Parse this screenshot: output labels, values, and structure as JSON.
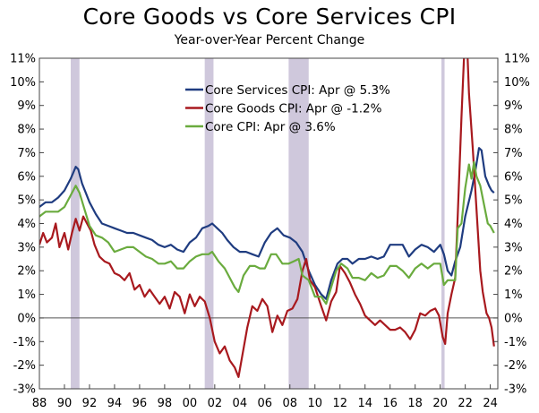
{
  "chart_data": {
    "type": "line",
    "title": "Core Goods vs Core Services CPI",
    "subtitle": "Year-over-Year Percent Change",
    "xlim": [
      1988,
      2024.6
    ],
    "ylim": [
      -3,
      11
    ],
    "y_ticks": [
      -3,
      -2,
      -1,
      0,
      1,
      2,
      3,
      4,
      5,
      6,
      7,
      8,
      9,
      10,
      11
    ],
    "y_tick_labels": [
      "-3%",
      "-2%",
      "-1%",
      "0%",
      "1%",
      "2%",
      "3%",
      "4%",
      "5%",
      "6%",
      "7%",
      "8%",
      "9%",
      "10%",
      "11%"
    ],
    "x_ticks": [
      1988,
      1990,
      1992,
      1994,
      1996,
      1998,
      2000,
      2002,
      2004,
      2006,
      2008,
      2010,
      2012,
      2014,
      2016,
      2018,
      2020,
      2022,
      2024
    ],
    "x_tick_labels": [
      "88",
      "90",
      "92",
      "94",
      "96",
      "98",
      "00",
      "02",
      "04",
      "06",
      "08",
      "10",
      "12",
      "14",
      "16",
      "18",
      "20",
      "22",
      "24"
    ],
    "axis_labels_both_sides": true,
    "zero_line": true,
    "grid": false,
    "legend_position": "top-center",
    "recession_shading": [
      [
        1990.5,
        1991.2
      ],
      [
        2001.2,
        2001.9
      ],
      [
        2007.9,
        2009.5
      ],
      [
        2020.1,
        2020.35
      ]
    ],
    "recession_color": "#cfc8dc",
    "series": [
      {
        "name": "Core Services CPI: Apr @ 5.3%",
        "color": "#1f3c80",
        "points": [
          [
            1988.0,
            4.7
          ],
          [
            1988.5,
            4.9
          ],
          [
            1989.0,
            4.9
          ],
          [
            1989.5,
            5.1
          ],
          [
            1990.0,
            5.4
          ],
          [
            1990.5,
            5.9
          ],
          [
            1990.9,
            6.4
          ],
          [
            1991.1,
            6.3
          ],
          [
            1991.4,
            5.7
          ],
          [
            1991.7,
            5.3
          ],
          [
            1992.0,
            4.9
          ],
          [
            1992.5,
            4.4
          ],
          [
            1993.0,
            4.0
          ],
          [
            1993.5,
            3.9
          ],
          [
            1994.0,
            3.8
          ],
          [
            1994.5,
            3.7
          ],
          [
            1995.0,
            3.6
          ],
          [
            1995.5,
            3.6
          ],
          [
            1996.0,
            3.5
          ],
          [
            1996.5,
            3.4
          ],
          [
            1997.0,
            3.3
          ],
          [
            1997.5,
            3.1
          ],
          [
            1998.0,
            3.0
          ],
          [
            1998.5,
            3.1
          ],
          [
            1999.0,
            2.9
          ],
          [
            1999.5,
            2.8
          ],
          [
            2000.0,
            3.2
          ],
          [
            2000.5,
            3.4
          ],
          [
            2001.0,
            3.8
          ],
          [
            2001.5,
            3.9
          ],
          [
            2001.8,
            4.0
          ],
          [
            2002.2,
            3.8
          ],
          [
            2002.6,
            3.6
          ],
          [
            2003.0,
            3.3
          ],
          [
            2003.5,
            3.0
          ],
          [
            2004.0,
            2.8
          ],
          [
            2004.5,
            2.8
          ],
          [
            2005.0,
            2.7
          ],
          [
            2005.5,
            2.6
          ],
          [
            2006.0,
            3.2
          ],
          [
            2006.5,
            3.6
          ],
          [
            2007.0,
            3.8
          ],
          [
            2007.5,
            3.5
          ],
          [
            2008.0,
            3.4
          ],
          [
            2008.5,
            3.2
          ],
          [
            2009.0,
            2.8
          ],
          [
            2009.5,
            2.0
          ],
          [
            2010.0,
            1.4
          ],
          [
            2010.5,
            1.0
          ],
          [
            2010.9,
            0.8
          ],
          [
            2011.3,
            1.6
          ],
          [
            2011.8,
            2.3
          ],
          [
            2012.2,
            2.5
          ],
          [
            2012.6,
            2.5
          ],
          [
            2013.0,
            2.3
          ],
          [
            2013.5,
            2.5
          ],
          [
            2014.0,
            2.5
          ],
          [
            2014.5,
            2.6
          ],
          [
            2015.0,
            2.5
          ],
          [
            2015.5,
            2.6
          ],
          [
            2016.0,
            3.1
          ],
          [
            2016.5,
            3.1
          ],
          [
            2017.0,
            3.1
          ],
          [
            2017.5,
            2.6
          ],
          [
            2018.0,
            2.9
          ],
          [
            2018.5,
            3.1
          ],
          [
            2019.0,
            3.0
          ],
          [
            2019.5,
            2.8
          ],
          [
            2020.0,
            3.1
          ],
          [
            2020.3,
            2.7
          ],
          [
            2020.6,
            2.0
          ],
          [
            2020.9,
            1.8
          ],
          [
            2021.2,
            2.4
          ],
          [
            2021.6,
            3.0
          ],
          [
            2022.0,
            4.3
          ],
          [
            2022.5,
            5.4
          ],
          [
            2022.8,
            6.2
          ],
          [
            2023.1,
            7.2
          ],
          [
            2023.3,
            7.1
          ],
          [
            2023.6,
            6.0
          ],
          [
            2023.9,
            5.6
          ],
          [
            2024.1,
            5.4
          ],
          [
            2024.3,
            5.3
          ]
        ]
      },
      {
        "name": "Core Goods CPI: Apr @ -1.2%",
        "color": "#a8191e",
        "points": [
          [
            1988.0,
            3.1
          ],
          [
            1988.3,
            3.6
          ],
          [
            1988.6,
            3.2
          ],
          [
            1989.0,
            3.4
          ],
          [
            1989.3,
            4.0
          ],
          [
            1989.6,
            3.0
          ],
          [
            1990.0,
            3.6
          ],
          [
            1990.3,
            2.9
          ],
          [
            1990.6,
            3.6
          ],
          [
            1990.9,
            4.2
          ],
          [
            1991.2,
            3.7
          ],
          [
            1991.5,
            4.3
          ],
          [
            1991.8,
            4.0
          ],
          [
            1992.1,
            3.7
          ],
          [
            1992.4,
            3.1
          ],
          [
            1992.8,
            2.6
          ],
          [
            1993.2,
            2.4
          ],
          [
            1993.6,
            2.3
          ],
          [
            1994.0,
            1.9
          ],
          [
            1994.4,
            1.8
          ],
          [
            1994.8,
            1.6
          ],
          [
            1995.2,
            1.9
          ],
          [
            1995.6,
            1.2
          ],
          [
            1996.0,
            1.4
          ],
          [
            1996.4,
            0.9
          ],
          [
            1996.8,
            1.2
          ],
          [
            1997.2,
            0.9
          ],
          [
            1997.6,
            0.6
          ],
          [
            1998.0,
            0.9
          ],
          [
            1998.4,
            0.4
          ],
          [
            1998.8,
            1.1
          ],
          [
            1999.2,
            0.9
          ],
          [
            1999.6,
            0.2
          ],
          [
            2000.0,
            1.0
          ],
          [
            2000.4,
            0.5
          ],
          [
            2000.8,
            0.9
          ],
          [
            2001.2,
            0.7
          ],
          [
            2001.6,
            0.0
          ],
          [
            2002.0,
            -1.0
          ],
          [
            2002.4,
            -1.5
          ],
          [
            2002.8,
            -1.2
          ],
          [
            2003.2,
            -1.8
          ],
          [
            2003.6,
            -2.1
          ],
          [
            2003.9,
            -2.5
          ],
          [
            2004.2,
            -1.6
          ],
          [
            2004.6,
            -0.4
          ],
          [
            2005.0,
            0.5
          ],
          [
            2005.4,
            0.3
          ],
          [
            2005.8,
            0.8
          ],
          [
            2006.2,
            0.5
          ],
          [
            2006.6,
            -0.6
          ],
          [
            2007.0,
            0.1
          ],
          [
            2007.4,
            -0.3
          ],
          [
            2007.8,
            0.3
          ],
          [
            2008.2,
            0.4
          ],
          [
            2008.6,
            0.8
          ],
          [
            2009.0,
            2.0
          ],
          [
            2009.3,
            2.5
          ],
          [
            2009.6,
            1.6
          ],
          [
            2010.0,
            1.3
          ],
          [
            2010.5,
            0.5
          ],
          [
            2010.9,
            -0.1
          ],
          [
            2011.3,
            0.7
          ],
          [
            2011.7,
            1.1
          ],
          [
            2012.0,
            2.2
          ],
          [
            2012.4,
            1.9
          ],
          [
            2012.8,
            1.5
          ],
          [
            2013.2,
            1.0
          ],
          [
            2013.6,
            0.6
          ],
          [
            2014.0,
            0.1
          ],
          [
            2014.4,
            -0.1
          ],
          [
            2014.8,
            -0.3
          ],
          [
            2015.2,
            -0.1
          ],
          [
            2015.6,
            -0.3
          ],
          [
            2016.0,
            -0.5
          ],
          [
            2016.4,
            -0.5
          ],
          [
            2016.8,
            -0.4
          ],
          [
            2017.2,
            -0.6
          ],
          [
            2017.6,
            -0.9
          ],
          [
            2018.0,
            -0.5
          ],
          [
            2018.4,
            0.2
          ],
          [
            2018.8,
            0.1
          ],
          [
            2019.2,
            0.3
          ],
          [
            2019.6,
            0.4
          ],
          [
            2019.9,
            0.1
          ],
          [
            2020.2,
            -0.8
          ],
          [
            2020.4,
            -1.1
          ],
          [
            2020.6,
            0.2
          ],
          [
            2020.9,
            1.0
          ],
          [
            2021.2,
            1.7
          ],
          [
            2021.4,
            4.3
          ],
          [
            2021.7,
            8.5
          ],
          [
            2021.9,
            11.0
          ],
          [
            2022.1,
            12.3
          ],
          [
            2022.3,
            9.5
          ],
          [
            2022.6,
            7.2
          ],
          [
            2022.9,
            4.6
          ],
          [
            2023.2,
            2.0
          ],
          [
            2023.4,
            1.1
          ],
          [
            2023.7,
            0.2
          ],
          [
            2023.9,
            0.0
          ],
          [
            2024.1,
            -0.4
          ],
          [
            2024.3,
            -1.2
          ]
        ]
      },
      {
        "name": "Core CPI: Apr @ 3.6%",
        "color": "#6aab3e",
        "points": [
          [
            1988.0,
            4.3
          ],
          [
            1988.5,
            4.5
          ],
          [
            1989.0,
            4.5
          ],
          [
            1989.5,
            4.5
          ],
          [
            1990.0,
            4.7
          ],
          [
            1990.5,
            5.2
          ],
          [
            1990.9,
            5.6
          ],
          [
            1991.2,
            5.3
          ],
          [
            1991.6,
            4.6
          ],
          [
            1992.0,
            3.9
          ],
          [
            1992.5,
            3.5
          ],
          [
            1993.0,
            3.4
          ],
          [
            1993.5,
            3.2
          ],
          [
            1994.0,
            2.8
          ],
          [
            1994.5,
            2.9
          ],
          [
            1995.0,
            3.0
          ],
          [
            1995.5,
            3.0
          ],
          [
            1996.0,
            2.8
          ],
          [
            1996.5,
            2.6
          ],
          [
            1997.0,
            2.5
          ],
          [
            1997.5,
            2.3
          ],
          [
            1998.0,
            2.3
          ],
          [
            1998.5,
            2.4
          ],
          [
            1999.0,
            2.1
          ],
          [
            1999.5,
            2.1
          ],
          [
            2000.0,
            2.4
          ],
          [
            2000.5,
            2.6
          ],
          [
            2001.0,
            2.7
          ],
          [
            2001.5,
            2.7
          ],
          [
            2001.8,
            2.8
          ],
          [
            2002.3,
            2.4
          ],
          [
            2002.8,
            2.1
          ],
          [
            2003.2,
            1.7
          ],
          [
            2003.6,
            1.3
          ],
          [
            2003.9,
            1.1
          ],
          [
            2004.3,
            1.8
          ],
          [
            2004.8,
            2.2
          ],
          [
            2005.2,
            2.2
          ],
          [
            2005.6,
            2.1
          ],
          [
            2006.0,
            2.1
          ],
          [
            2006.5,
            2.7
          ],
          [
            2006.9,
            2.7
          ],
          [
            2007.4,
            2.3
          ],
          [
            2007.9,
            2.3
          ],
          [
            2008.3,
            2.4
          ],
          [
            2008.7,
            2.5
          ],
          [
            2009.0,
            1.8
          ],
          [
            2009.5,
            1.6
          ],
          [
            2010.0,
            0.9
          ],
          [
            2010.5,
            0.9
          ],
          [
            2010.9,
            0.6
          ],
          [
            2011.3,
            1.3
          ],
          [
            2011.7,
            2.0
          ],
          [
            2012.1,
            2.3
          ],
          [
            2012.6,
            2.1
          ],
          [
            2013.0,
            1.7
          ],
          [
            2013.5,
            1.7
          ],
          [
            2014.0,
            1.6
          ],
          [
            2014.5,
            1.9
          ],
          [
            2015.0,
            1.7
          ],
          [
            2015.5,
            1.8
          ],
          [
            2016.0,
            2.2
          ],
          [
            2016.5,
            2.2
          ],
          [
            2017.0,
            2.0
          ],
          [
            2017.5,
            1.7
          ],
          [
            2018.0,
            2.1
          ],
          [
            2018.5,
            2.3
          ],
          [
            2019.0,
            2.1
          ],
          [
            2019.5,
            2.3
          ],
          [
            2020.0,
            2.3
          ],
          [
            2020.3,
            1.4
          ],
          [
            2020.6,
            1.6
          ],
          [
            2020.9,
            1.6
          ],
          [
            2021.2,
            1.6
          ],
          [
            2021.4,
            3.8
          ],
          [
            2021.7,
            4.0
          ],
          [
            2022.0,
            5.5
          ],
          [
            2022.3,
            6.5
          ],
          [
            2022.5,
            5.9
          ],
          [
            2022.7,
            6.6
          ],
          [
            2022.9,
            6.0
          ],
          [
            2023.2,
            5.6
          ],
          [
            2023.5,
            4.8
          ],
          [
            2023.8,
            4.0
          ],
          [
            2024.0,
            3.9
          ],
          [
            2024.3,
            3.6
          ]
        ]
      }
    ]
  }
}
